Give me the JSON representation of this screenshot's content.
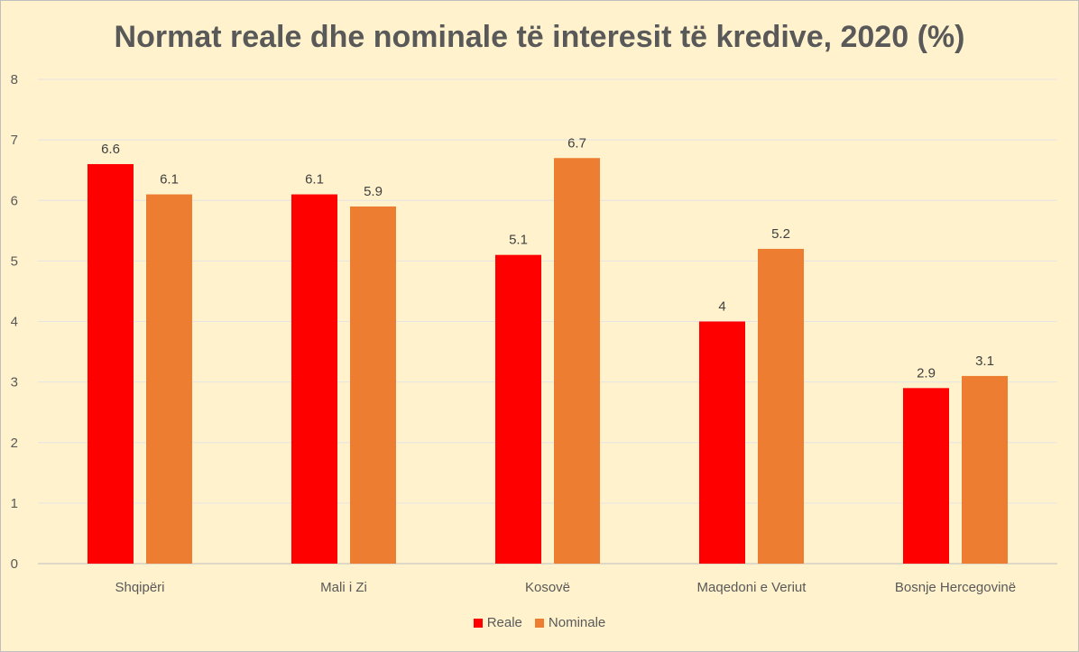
{
  "chart_data": {
    "type": "bar",
    "title": "Normat reale dhe nominale të interesit të kredive, 2020 (%)",
    "categories": [
      "Shqipëri",
      "Mali i Zi",
      "Kosovë",
      "Maqedoni e Veriut",
      "Bosnje Hercegovinë"
    ],
    "series": [
      {
        "name": "Reale",
        "color": "#FF0000",
        "values": [
          6.6,
          6.1,
          5.1,
          4,
          2.9
        ]
      },
      {
        "name": "Nominale",
        "color": "#ED7D31",
        "values": [
          6.1,
          5.9,
          6.7,
          5.2,
          3.1
        ]
      }
    ],
    "ylim": [
      0,
      8
    ],
    "yticks": [
      0,
      1,
      2,
      3,
      4,
      5,
      6,
      7,
      8
    ],
    "grid": true,
    "legend": "bottom",
    "xlabel": "",
    "ylabel": ""
  }
}
